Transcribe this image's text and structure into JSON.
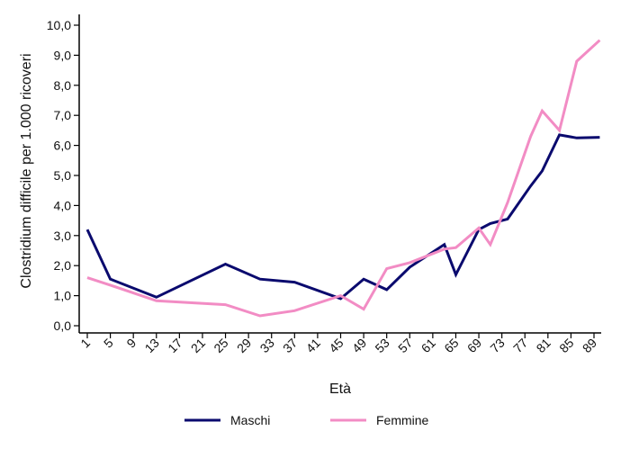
{
  "chart_data": {
    "type": "line",
    "xlabel": "Età",
    "ylabel": "Clostridium difficile per 1.000 ricoveri",
    "ylim": [
      0,
      10
    ],
    "y_ticks": [
      "0,0",
      "1,0",
      "2,0",
      "3,0",
      "4,0",
      "5,0",
      "6,0",
      "7,0",
      "8,0",
      "9,0",
      "10,0"
    ],
    "x_ticks": [
      "1",
      "5",
      "9",
      "13",
      "17",
      "21",
      "25",
      "29",
      "33",
      "37",
      "41",
      "45",
      "49",
      "53",
      "57",
      "61",
      "65",
      "69",
      "73",
      "77",
      "81",
      "85",
      "89"
    ],
    "xlim": [
      1,
      89
    ],
    "grid": false,
    "legend_position": "bottom",
    "series": [
      {
        "name": "Maschi",
        "color": "#0a0a6e",
        "x": [
          1,
          5,
          13,
          25,
          31,
          37,
          45,
          49,
          53,
          57,
          63,
          65,
          69,
          71,
          74,
          78,
          80,
          83,
          86,
          90
        ],
        "y": [
          3.2,
          1.55,
          0.95,
          2.05,
          1.55,
          1.45,
          0.9,
          1.55,
          1.2,
          1.95,
          2.7,
          1.7,
          3.2,
          3.4,
          3.55,
          4.65,
          5.15,
          6.35,
          6.25,
          6.27
        ]
      },
      {
        "name": "Femmine",
        "color": "#f28cc4",
        "x": [
          1,
          5,
          13,
          25,
          31,
          37,
          45,
          49,
          53,
          57,
          63,
          65,
          69,
          71,
          74,
          78,
          80,
          83,
          86,
          90
        ],
        "y": [
          1.6,
          1.35,
          0.83,
          0.7,
          0.33,
          0.5,
          1.0,
          0.55,
          1.9,
          2.1,
          2.55,
          2.6,
          3.25,
          2.7,
          4.1,
          6.3,
          7.15,
          6.5,
          8.8,
          9.5
        ]
      }
    ]
  }
}
